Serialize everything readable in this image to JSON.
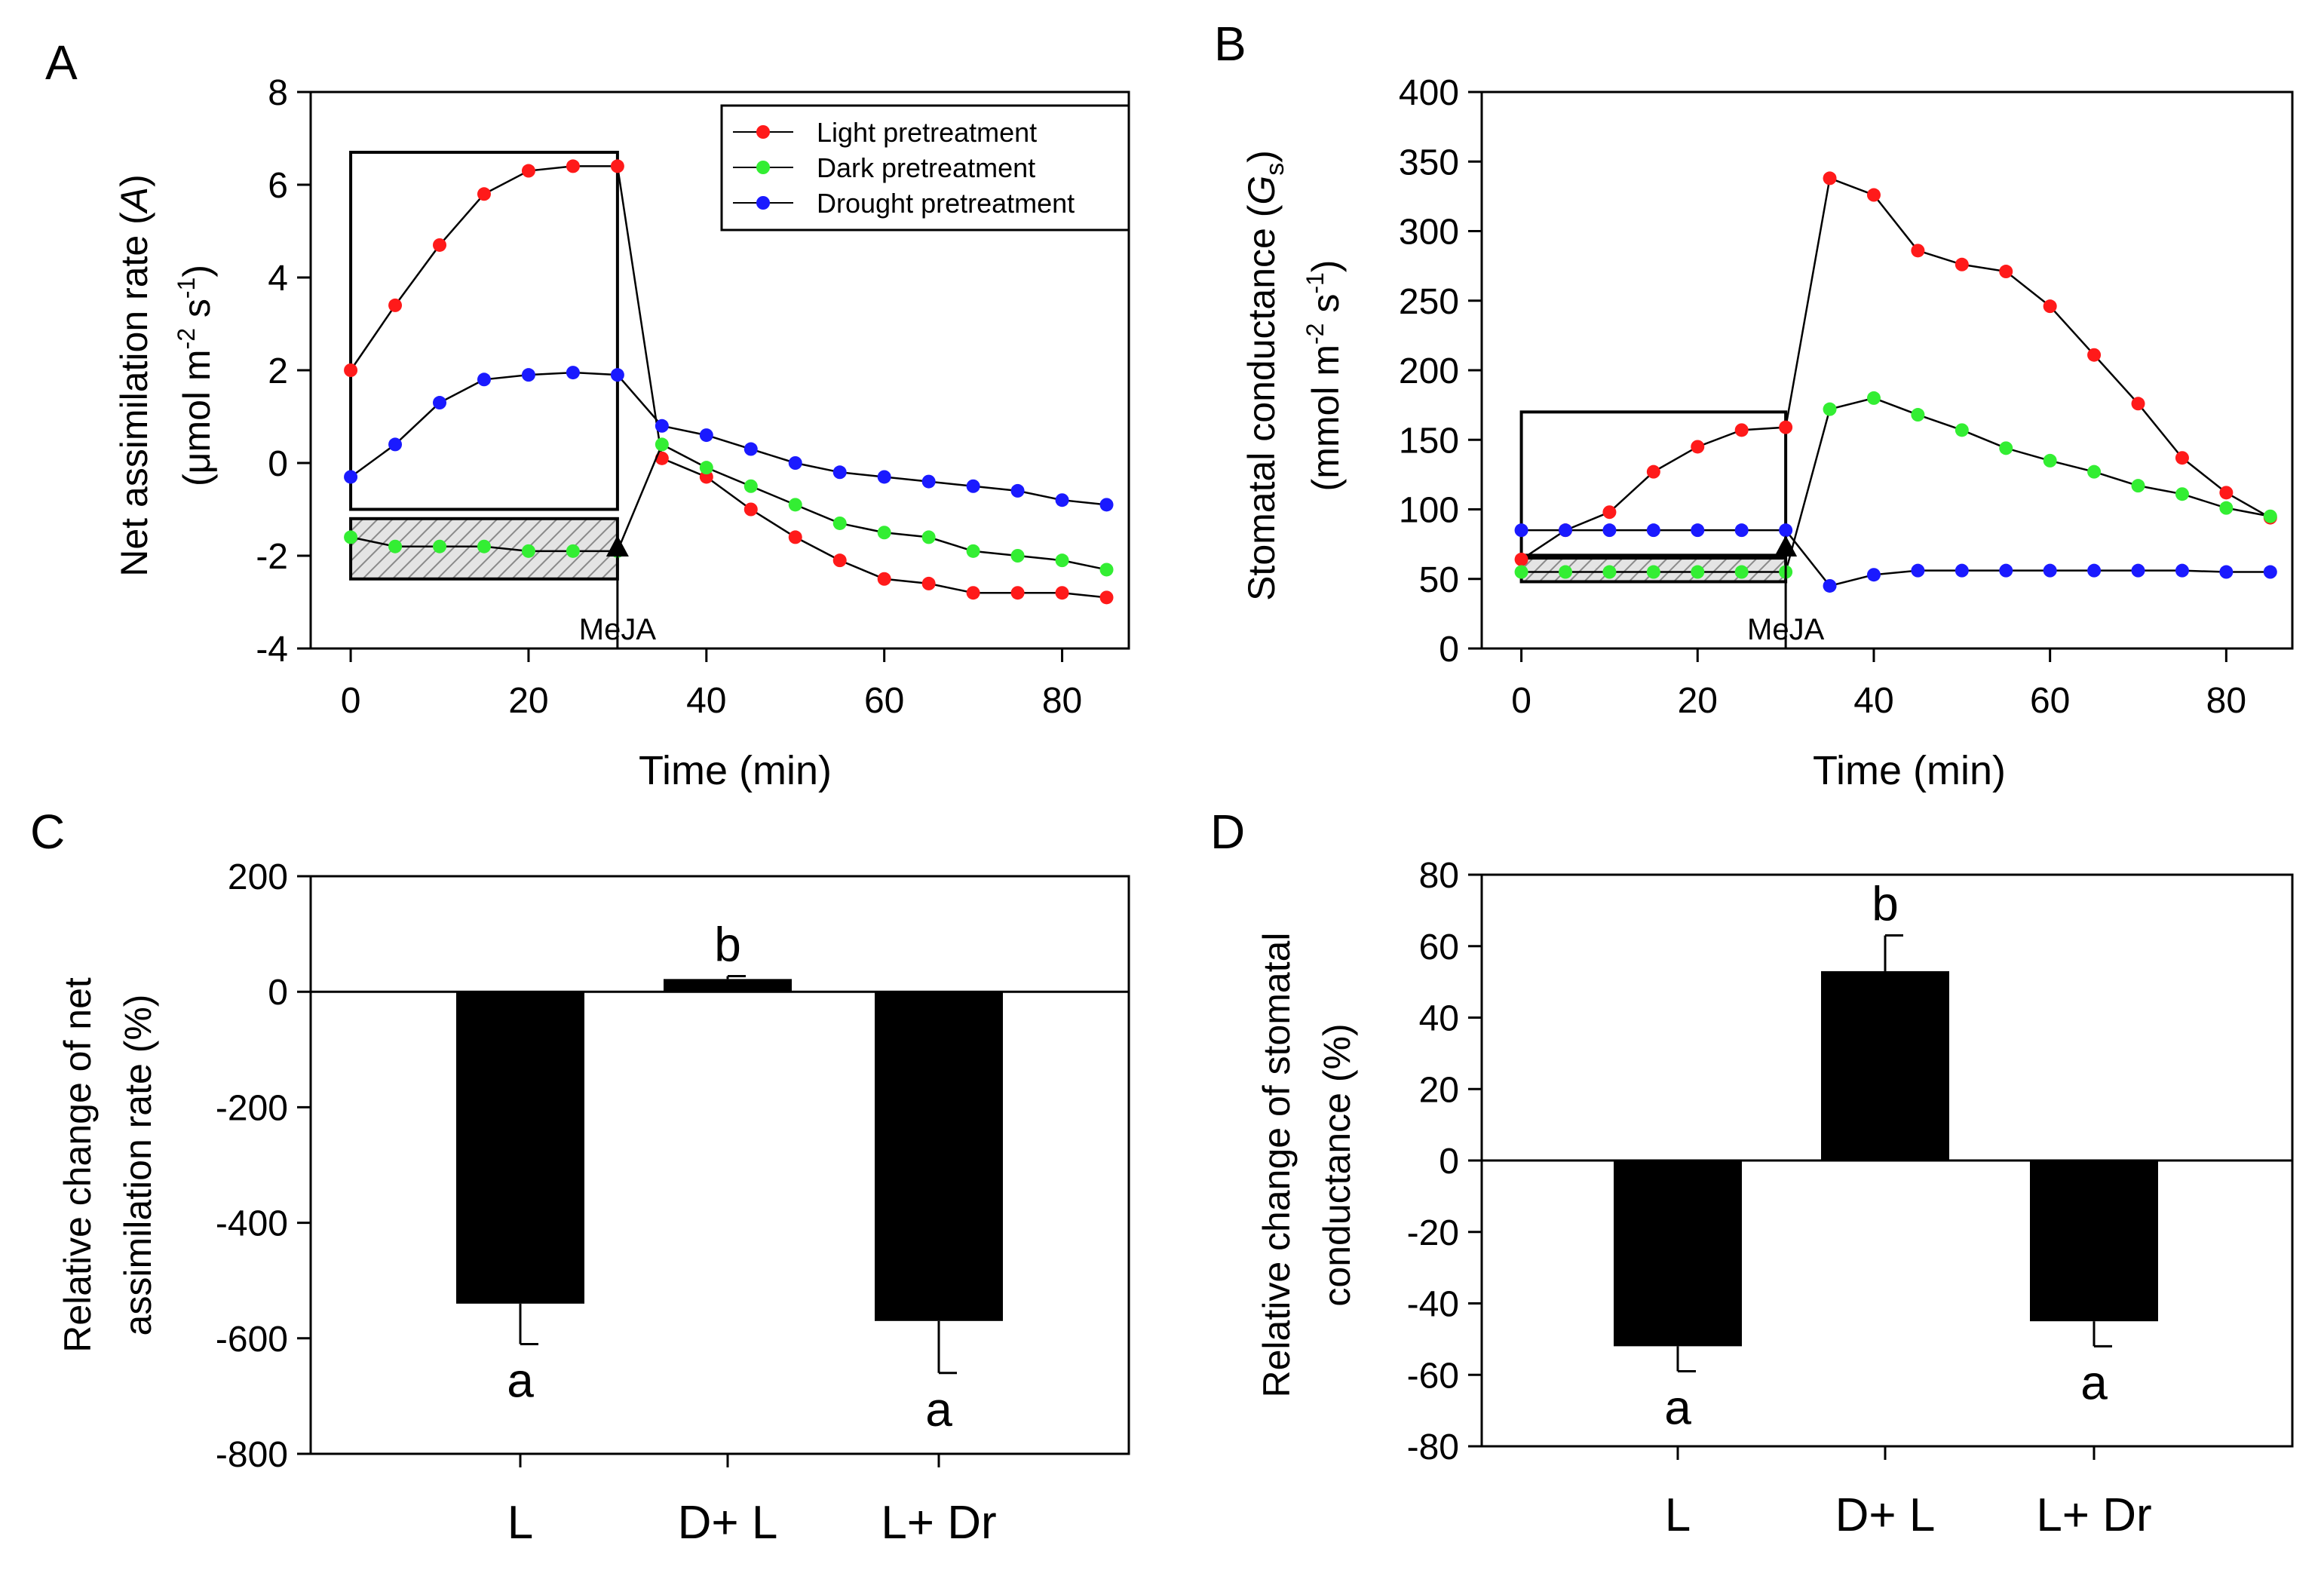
{
  "series_colors": {
    "light": "#ff1a1a",
    "dark": "#33ee33",
    "drought": "#1a1aff"
  },
  "legend": [
    "Light pretreatment",
    "Dark pretreatment",
    "Drought pretreatment"
  ],
  "chart_data": [
    {
      "panel_label": "A",
      "type": "line",
      "xlabel": "Time (min)",
      "ylabel_line1": "Net assimilation rate (",
      "ylabel_var": "A",
      "ylabel_line1_end": ")",
      "ylabel_line2": "(μmol m",
      "ylabel_sup1": "-2",
      "ylabel_mid": " s",
      "ylabel_sup2": "-1",
      "ylabel_end": ")",
      "xlim": [
        -4.5,
        87.5
      ],
      "ylim": [
        -4,
        8
      ],
      "xticks": [
        0,
        20,
        40,
        60,
        80
      ],
      "yticks": [
        -4,
        -2,
        0,
        2,
        4,
        6,
        8
      ],
      "annotation": "MeJA",
      "annotation_x": 30,
      "x": [
        0,
        5,
        10,
        15,
        20,
        25,
        30,
        35,
        40,
        45,
        50,
        55,
        60,
        65,
        70,
        75,
        80,
        85
      ],
      "series": [
        {
          "name": "Light pretreatment",
          "key": "light",
          "values": [
            2.0,
            3.4,
            4.7,
            5.8,
            6.3,
            6.4,
            6.4,
            0.1,
            -0.3,
            -1.0,
            -1.6,
            -2.1,
            -2.5,
            -2.6,
            -2.8,
            -2.8,
            -2.8,
            -2.9
          ]
        },
        {
          "name": "Dark pretreatment",
          "key": "dark",
          "values": [
            -1.6,
            -1.8,
            -1.8,
            -1.8,
            -1.9,
            -1.9,
            -1.9,
            0.4,
            -0.1,
            -0.5,
            -0.9,
            -1.3,
            -1.5,
            -1.6,
            -1.9,
            -2.0,
            -2.1,
            -2.3
          ]
        },
        {
          "name": "Drought pretreatment",
          "key": "drought",
          "values": [
            -0.3,
            0.4,
            1.3,
            1.8,
            1.9,
            1.95,
            1.9,
            0.8,
            0.6,
            0.3,
            0.0,
            -0.2,
            -0.3,
            -0.4,
            -0.5,
            -0.6,
            -0.8,
            -0.9
          ]
        }
      ],
      "boxes": [
        {
          "x0": 0,
          "x1": 30,
          "y0": -1.0,
          "y1": 6.7,
          "hatched": false
        },
        {
          "x0": 0,
          "x1": 30,
          "y0": -2.5,
          "y1": -1.2,
          "hatched": true
        }
      ]
    },
    {
      "panel_label": "B",
      "type": "line",
      "xlabel": "Time (min)",
      "ylabel_line1": "Stomatal conductance (",
      "ylabel_var": "G",
      "ylabel_sub": "s",
      "ylabel_line1_end": ")",
      "ylabel_line2": "(mmol m",
      "ylabel_sup1": "-2",
      "ylabel_mid": " s",
      "ylabel_sup2": "-1",
      "ylabel_end": ")",
      "xlim": [
        -4.5,
        87.5
      ],
      "ylim": [
        0,
        400
      ],
      "xticks": [
        0,
        20,
        40,
        60,
        80
      ],
      "yticks": [
        0,
        50,
        100,
        150,
        200,
        250,
        300,
        350,
        400
      ],
      "annotation": "MeJA",
      "annotation_x": 30,
      "x": [
        0,
        5,
        10,
        15,
        20,
        25,
        30,
        35,
        40,
        45,
        50,
        55,
        60,
        65,
        70,
        75,
        80,
        85
      ],
      "series": [
        {
          "name": "Light pretreatment",
          "key": "light",
          "values": [
            64,
            85,
            98,
            127,
            145,
            157,
            159,
            338,
            326,
            286,
            276,
            271,
            246,
            211,
            176,
            137,
            112,
            94
          ]
        },
        {
          "name": "Dark pretreatment",
          "key": "dark",
          "values": [
            55,
            55,
            55,
            55,
            55,
            55,
            55,
            172,
            180,
            168,
            157,
            144,
            135,
            127,
            117,
            111,
            101,
            95
          ]
        },
        {
          "name": "Drought pretreatment",
          "key": "drought",
          "values": [
            85,
            85,
            85,
            85,
            85,
            85,
            85,
            45,
            53,
            56,
            56,
            56,
            56,
            56,
            56,
            56,
            55,
            55
          ]
        }
      ],
      "boxes": [
        {
          "x0": 0,
          "x1": 30,
          "y0": 67,
          "y1": 170,
          "hatched": false
        },
        {
          "x0": 0,
          "x1": 30,
          "y0": 48,
          "y1": 65,
          "hatched": true
        }
      ]
    },
    {
      "panel_label": "C",
      "type": "bar",
      "ylabel_line1": "Relative change of net",
      "ylabel_line2": "assimilation rate (%)",
      "categories": [
        "L",
        "D+ L",
        "L+ Dr"
      ],
      "values": [
        -540,
        22,
        -570
      ],
      "errors": [
        70,
        5,
        90
      ],
      "sig_letters": [
        "a",
        "b",
        "a"
      ],
      "ylim": [
        -800,
        200
      ],
      "yticks": [
        -800,
        -600,
        -400,
        -200,
        0,
        200
      ]
    },
    {
      "panel_label": "D",
      "type": "bar",
      "ylabel_line1": "Relative change of stomatal",
      "ylabel_line2": "conductance (%)",
      "categories": [
        "L",
        "D+ L",
        "L+ Dr"
      ],
      "values": [
        -52,
        53,
        -45
      ],
      "errors": [
        7,
        10,
        7
      ],
      "sig_letters": [
        "a",
        "b",
        "a"
      ],
      "ylim": [
        -80,
        80
      ],
      "yticks": [
        -80,
        -60,
        -40,
        -20,
        0,
        20,
        40,
        60,
        80
      ]
    }
  ]
}
